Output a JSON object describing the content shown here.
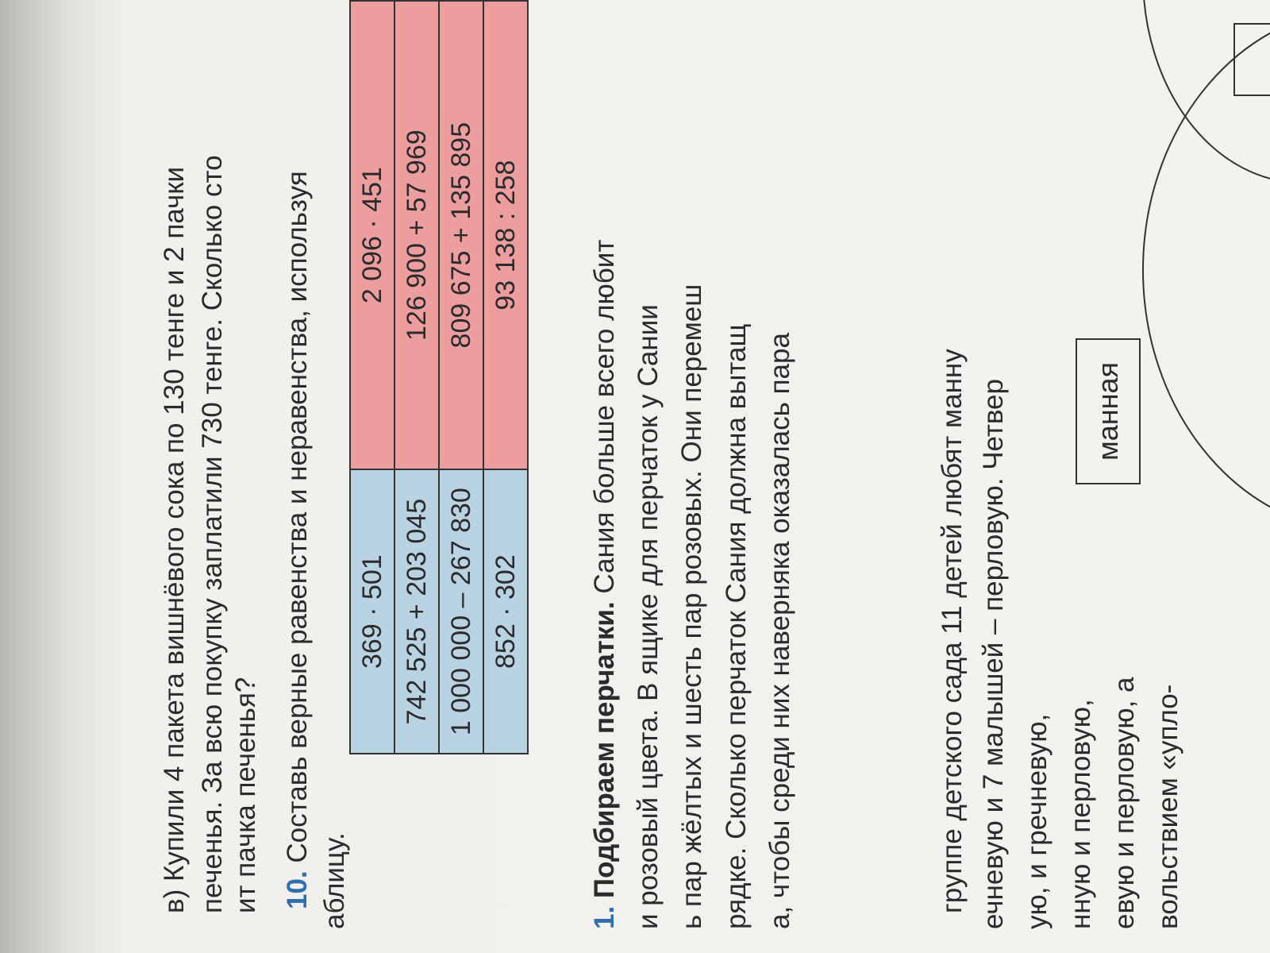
{
  "task_v": {
    "line1": "в) Купили 4 пакета вишнёвого сока по 130 тенге и 2 пачки",
    "line2": "печенья. За всю покупку заплатили 730 тенге. Сколько сто",
    "line3": "ит пачка печенья?"
  },
  "task10": {
    "number": "10.",
    "text": "Составь верные равенства и неравенства, используя",
    "line2": "аблицу.",
    "table": {
      "blue": [
        "369 · 501",
        "742 525 + 203 045",
        "1 000 000 – 267 830",
        "852 · 302"
      ],
      "red": [
        "2 096 · 451",
        "126 900 + 57 969",
        "809 675 + 135 895",
        "93 138 : 258"
      ]
    }
  },
  "task11": {
    "number": "1.",
    "title": "Подбираем перчатки.",
    "line1": "Сания больше всего любит",
    "lines": [
      "и розовый цвета. В ящике для перчаток у Сании",
      "ь пар жёлтых и шесть пар розовых. Они перемеш",
      "рядке. Сколько перчаток Сания должна вытащ",
      "а, чтобы среди них наверняка оказалась пара"
    ]
  },
  "task12": {
    "lines": [
      "группе детского сада 11 детей любят манну",
      "ечневую и 7 малышей – перловую. Четвер",
      "ую, и гречневую,",
      "нную и перловую,",
      "евую и перловую, а",
      "вольствием «упло-"
    ],
    "box_label": "манная"
  },
  "colors": {
    "blue_cell": "#b9d3e3",
    "red_cell": "#ec9d9d",
    "task_number": "#2f6fb0"
  }
}
